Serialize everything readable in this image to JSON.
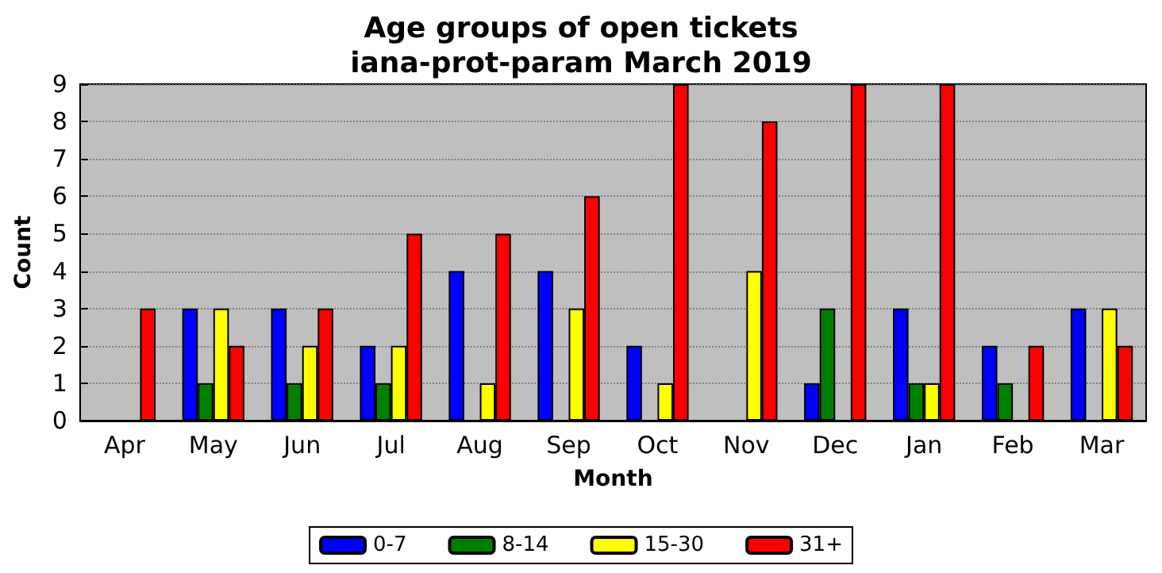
{
  "chart_data": {
    "type": "bar",
    "title": "Age groups of open tickets",
    "subtitle": "iana-prot-param March 2019",
    "xlabel": "Month",
    "ylabel": "Count",
    "categories": [
      "Apr",
      "May",
      "Jun",
      "Jul",
      "Aug",
      "Sep",
      "Oct",
      "Nov",
      "Dec",
      "Jan",
      "Feb",
      "Mar"
    ],
    "series": [
      {
        "name": "0-7",
        "color": "#0000ff",
        "values": [
          0,
          3,
          3,
          2,
          4,
          4,
          2,
          0,
          1,
          3,
          2,
          3
        ]
      },
      {
        "name": "8-14",
        "color": "#008000",
        "values": [
          0,
          1,
          1,
          1,
          0,
          0,
          0,
          0,
          3,
          1,
          1,
          0
        ]
      },
      {
        "name": "15-30",
        "color": "#ffff00",
        "values": [
          0,
          3,
          2,
          2,
          1,
          3,
          1,
          4,
          0,
          1,
          0,
          3
        ]
      },
      {
        "name": "31+",
        "color": "#ff0000",
        "values": [
          3,
          2,
          3,
          5,
          5,
          6,
          9,
          8,
          9,
          9,
          2,
          2
        ]
      }
    ],
    "ylim": [
      0,
      9
    ],
    "yticks": [
      0,
      1,
      2,
      3,
      4,
      5,
      6,
      7,
      8,
      9
    ],
    "grid": "y",
    "legend": "bottom"
  }
}
